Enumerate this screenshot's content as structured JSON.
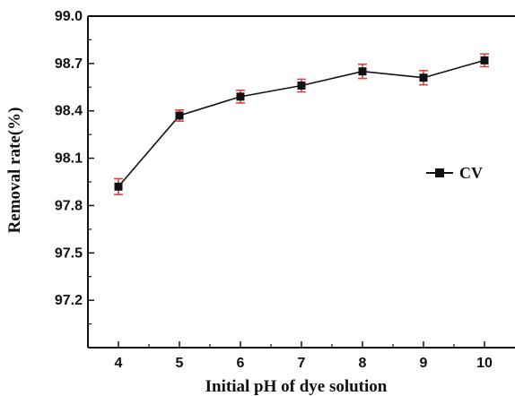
{
  "chart_data": {
    "type": "line",
    "xlabel": "Initial pH of dye solution",
    "ylabel": "Removal rate(%)",
    "x": [
      4,
      5,
      6,
      7,
      8,
      9,
      10
    ],
    "xlim": [
      3.5,
      10.5
    ],
    "ylim": [
      96.9,
      99.0
    ],
    "yticks": [
      "97.2",
      "97.5",
      "97.8",
      "98.1",
      "98.4",
      "98.7",
      "99.0"
    ],
    "xticks": [
      "4",
      "5",
      "6",
      "7",
      "8",
      "9",
      "10"
    ],
    "series": [
      {
        "name": "CV",
        "values": [
          97.92,
          98.37,
          98.49,
          98.56,
          98.65,
          98.61,
          98.72
        ],
        "error": [
          0.05,
          0.035,
          0.04,
          0.04,
          0.045,
          0.045,
          0.04
        ],
        "color": "#111111",
        "error_color": "#e0413a"
      }
    ],
    "legend": {
      "placement": "right-middle",
      "entries": [
        "CV"
      ]
    },
    "grid": false
  }
}
